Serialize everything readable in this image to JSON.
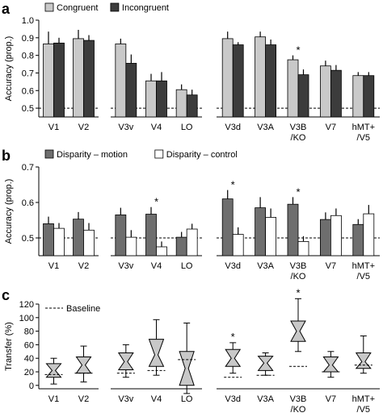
{
  "chart_data": [
    {
      "panel": "a",
      "type": "bar",
      "ylabel": "Accuracy (prop.)",
      "ylim": [
        0.45,
        1.0
      ],
      "yticks": [
        "0.5",
        "0.6",
        "0.7",
        "0.8",
        "0.9",
        "1.0"
      ],
      "chance_line": 0.5,
      "groups": [
        [
          "V1",
          "V2"
        ],
        [
          "V3v",
          "V4",
          "LO"
        ],
        [
          "V3d",
          "V3A",
          "V3B /KO",
          "V7",
          "hMT+ /V5"
        ]
      ],
      "categories": [
        "V1",
        "V2",
        "V3v",
        "V4",
        "LO",
        "V3d",
        "V3A",
        "V3B /KO",
        "V7",
        "hMT+ /V5"
      ],
      "category_lines": [
        [
          "V1"
        ],
        [
          "V2"
        ],
        [
          "V3v"
        ],
        [
          "V4"
        ],
        [
          "LO"
        ],
        [
          "V3d"
        ],
        [
          "V3A"
        ],
        [
          "V3B",
          "/KO"
        ],
        [
          "V7"
        ],
        [
          "hMT+",
          "/V5"
        ]
      ],
      "series": [
        {
          "name": "Congruent",
          "color": "#c9c9c9",
          "values": [
            0.865,
            0.895,
            0.865,
            0.655,
            0.605,
            0.895,
            0.905,
            0.775,
            0.74,
            0.685
          ],
          "errors": [
            0.07,
            0.05,
            0.03,
            0.04,
            0.03,
            0.04,
            0.03,
            0.025,
            0.03,
            0.02
          ]
        },
        {
          "name": "Incongruent",
          "color": "#3c3c3c",
          "values": [
            0.87,
            0.885,
            0.755,
            0.655,
            0.575,
            0.86,
            0.86,
            0.69,
            0.715,
            0.685
          ],
          "errors": [
            0.03,
            0.03,
            0.05,
            0.05,
            0.03,
            0.015,
            0.03,
            0.03,
            0.03,
            0.02
          ]
        }
      ],
      "significant": [
        "V3B /KO"
      ],
      "star": "*",
      "legend_position": "top-left"
    },
    {
      "panel": "b",
      "type": "bar",
      "ylabel": "Accuracy (prop.)",
      "ylim": [
        0.45,
        0.7
      ],
      "yticks": [
        "0.5",
        "0.6",
        "0.7"
      ],
      "chance_line": 0.5,
      "groups": [
        [
          "V1",
          "V2"
        ],
        [
          "V3v",
          "V4",
          "LO"
        ],
        [
          "V3d",
          "V3A",
          "V3B /KO",
          "V7",
          "hMT+ /V5"
        ]
      ],
      "categories": [
        "V1",
        "V2",
        "V3v",
        "V4",
        "LO",
        "V3d",
        "V3A",
        "V3B /KO",
        "V7",
        "hMT+ /V5"
      ],
      "category_lines": [
        [
          "V1"
        ],
        [
          "V2"
        ],
        [
          "V3v"
        ],
        [
          "V4"
        ],
        [
          "LO"
        ],
        [
          "V3d"
        ],
        [
          "V3A"
        ],
        [
          "V3B",
          "/KO"
        ],
        [
          "V7"
        ],
        [
          "hMT+",
          "/V5"
        ]
      ],
      "series": [
        {
          "name": "Disparity – motion",
          "color": "#6e6e6e",
          "values": [
            0.54,
            0.553,
            0.565,
            0.567,
            0.502,
            0.61,
            0.585,
            0.595,
            0.552,
            0.538
          ],
          "errors": [
            0.02,
            0.02,
            0.02,
            0.02,
            0.015,
            0.025,
            0.03,
            0.02,
            0.02,
            0.015
          ]
        },
        {
          "name": "Disparity – control",
          "color": "#ffffff",
          "values": [
            0.527,
            0.522,
            0.502,
            0.475,
            0.525,
            0.51,
            0.558,
            0.49,
            0.563,
            0.568
          ],
          "errors": [
            0.015,
            0.02,
            0.02,
            0.015,
            0.015,
            0.02,
            0.025,
            0.015,
            0.02,
            0.025
          ]
        }
      ],
      "significant": [
        "V4",
        "V3d",
        "V3B /KO"
      ],
      "star": "*",
      "legend_position": "top-left"
    },
    {
      "panel": "c",
      "type": "boxplot",
      "ylabel": "Transfer (%)",
      "ylim": [
        -5,
        120
      ],
      "yticks": [
        "0",
        "20",
        "40",
        "60",
        "80",
        "100",
        "120"
      ],
      "legend": {
        "label": "Baseline",
        "style": "dashed",
        "position": "top-left"
      },
      "groups": [
        [
          "V1",
          "V2"
        ],
        [
          "V3v",
          "V4",
          "LO"
        ],
        [
          "V3d",
          "V3A",
          "V3B /KO",
          "V7",
          "hMT+ /V5"
        ]
      ],
      "categories": [
        "V1",
        "V2",
        "V3v",
        "V4",
        "LO",
        "V3d",
        "V3A",
        "V3B /KO",
        "V7",
        "hMT+ /V5"
      ],
      "category_lines": [
        [
          "V1"
        ],
        [
          "V2"
        ],
        [
          "V3v"
        ],
        [
          "V4"
        ],
        [
          "LO"
        ],
        [
          "V3d"
        ],
        [
          "V3A"
        ],
        [
          "V3B",
          "/KO"
        ],
        [
          "V7"
        ],
        [
          "hMT+",
          "/V5"
        ]
      ],
      "boxes": [
        {
          "min": 2,
          "q1": 12,
          "median": 22,
          "q3": 32,
          "max": 40,
          "baseline": 16
        },
        {
          "min": 5,
          "q1": 18,
          "median": 30,
          "q3": 42,
          "max": 58,
          "baseline": 18
        },
        {
          "min": 12,
          "q1": 23,
          "median": 35,
          "q3": 48,
          "max": 60,
          "baseline": 18
        },
        {
          "min": 15,
          "q1": 28,
          "median": 45,
          "q3": 68,
          "max": 97,
          "baseline": 22
        },
        {
          "min": -12,
          "q1": 0,
          "median": 25,
          "q3": 50,
          "max": 92,
          "baseline": 38
        },
        {
          "min": 18,
          "q1": 28,
          "median": 40,
          "q3": 53,
          "max": 63,
          "baseline": 12
        },
        {
          "min": 15,
          "q1": 22,
          "median": 33,
          "q3": 43,
          "max": 48,
          "baseline": 15
        },
        {
          "min": 50,
          "q1": 65,
          "median": 80,
          "q3": 95,
          "max": 128,
          "baseline": 28
        },
        {
          "min": 12,
          "q1": 20,
          "median": 30,
          "q3": 42,
          "max": 50,
          "baseline": 20
        },
        {
          "min": 18,
          "q1": 25,
          "median": 35,
          "q3": 48,
          "max": 73,
          "baseline": 30
        }
      ],
      "significant": [
        "V3d",
        "V3B /KO"
      ],
      "star": "*"
    }
  ],
  "panel_labels": [
    "a",
    "b",
    "c"
  ],
  "axis_label_text": {
    "a": "Accuracy (prop.)",
    "b": "Accuracy (prop.)",
    "c": "Transfer (%)"
  }
}
